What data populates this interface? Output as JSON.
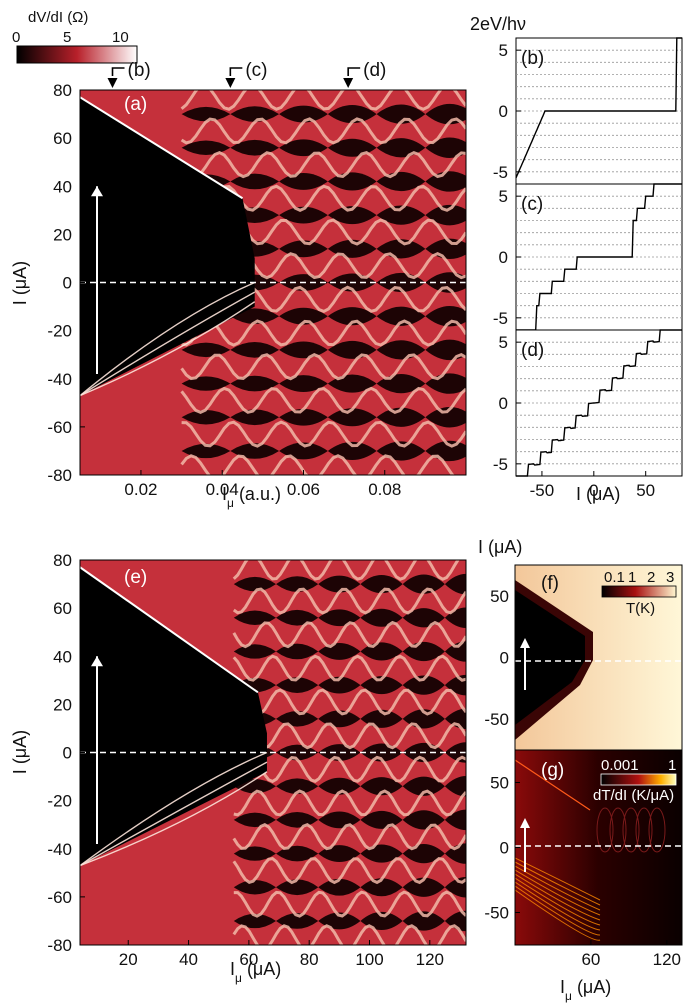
{
  "colors": {
    "map_low": "#000000",
    "map_mid": "#b8202a",
    "map_high": "#ffffff",
    "temp_low": "#000000",
    "temp_mid": "#a81010",
    "temp_high": "#fff6cf",
    "ridge": "#f1b9a8",
    "steps": "#000000",
    "dashed_zero": "#ffffff",
    "arrow": "#ffffff"
  },
  "colorbar_top": {
    "title": "dV/dI (Ω)",
    "ticks": [
      "0",
      "5",
      "10"
    ]
  },
  "markers": [
    "(b)",
    "(c)",
    "(d)"
  ],
  "chart_data": [
    {
      "type": "heatmap",
      "panel": "(a)",
      "xlabel": "Iμ (a.u.)",
      "ylabel": "I (μA)",
      "xlim": [
        0.005,
        0.1
      ],
      "ylim": [
        -80,
        80
      ],
      "xticks": [
        "0.02",
        "0.04",
        "0.06",
        "0.08"
      ],
      "yticks": [
        "80",
        "60",
        "40",
        "20",
        "0",
        "-20",
        "-40",
        "-60",
        "-80"
      ],
      "cut_markers": [
        {
          "label": "(b)",
          "x": 0.013
        },
        {
          "label": "(c)",
          "x": 0.042
        },
        {
          "label": "(d)",
          "x": 0.071
        }
      ]
    },
    {
      "type": "line",
      "panel": "(b)",
      "title": "2eV/hν",
      "xlim": [
        -75,
        85
      ],
      "ylim": [
        -6,
        6
      ],
      "yticks": [
        "5",
        "0",
        "-5"
      ]
    },
    {
      "type": "line",
      "panel": "(c)",
      "xlim": [
        -75,
        85
      ],
      "ylim": [
        -6,
        6
      ],
      "yticks": [
        "5",
        "0",
        "-5"
      ]
    },
    {
      "type": "line",
      "panel": "(d)",
      "xlabel": "I (μA)",
      "xlim": [
        -75,
        85
      ],
      "ylim": [
        -6,
        6
      ],
      "xticks": [
        "-50",
        "0",
        "50"
      ],
      "yticks": [
        "5",
        "0",
        "-5"
      ]
    },
    {
      "type": "heatmap",
      "panel": "(e)",
      "xlabel": "Iμ (μA)",
      "ylabel": "I (μA)",
      "xlim": [
        4,
        132
      ],
      "ylim": [
        -80,
        80
      ],
      "xticks": [
        "20",
        "40",
        "60",
        "80",
        "100",
        "120"
      ],
      "yticks": [
        "80",
        "60",
        "40",
        "20",
        "0",
        "-20",
        "-40",
        "-60",
        "-80"
      ]
    },
    {
      "type": "heatmap",
      "panel": "(f)",
      "top_axis_label": "I (μA)",
      "ylim": [
        -75,
        75
      ],
      "yticks": [
        "50",
        "0",
        "-50"
      ],
      "colorbar": {
        "ticks": [
          "0.1",
          "1",
          "2",
          "3"
        ],
        "label": "T(K)"
      }
    },
    {
      "type": "heatmap",
      "panel": "(g)",
      "xlabel": "Iμ (μA)",
      "xlim": [
        0,
        132
      ],
      "ylim": [
        -75,
        75
      ],
      "xticks": [
        "60",
        "120"
      ],
      "yticks": [
        "50",
        "0",
        "-50"
      ],
      "colorbar": {
        "ticks": [
          "0.001",
          "1"
        ],
        "label": "dT/dI (K/μA)"
      }
    }
  ]
}
